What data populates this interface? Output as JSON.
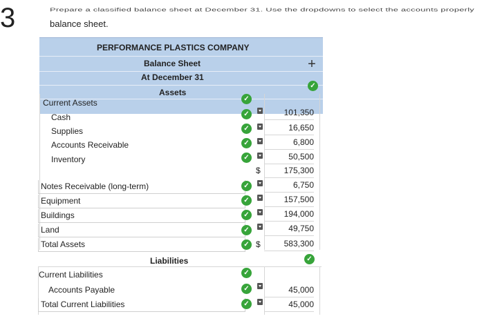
{
  "question": {
    "number": "3",
    "instruction_cut": "Prepare a classified balance sheet at December 31. Use the dropdowns to select the accounts properly",
    "instruction_line2": "balance sheet."
  },
  "sheet": {
    "company": "PERFORMANCE PLASTICS COMPANY",
    "title": "Balance Sheet",
    "date": "At December 31",
    "assets_heading": "Assets",
    "liabilities_heading": "Liabilities",
    "current_assets_label": "Current Assets",
    "current_assets": [
      {
        "label": "Cash",
        "amount": "101,350",
        "dollar": ""
      },
      {
        "label": "Supplies",
        "amount": "16,650",
        "dollar": ""
      },
      {
        "label": "Accounts Receivable",
        "amount": "6,800",
        "dollar": ""
      },
      {
        "label": "Inventory",
        "amount": "50,500",
        "dollar": ""
      }
    ],
    "current_assets_total": {
      "dollar": "$",
      "amount": "175,300"
    },
    "noncurrent_assets": [
      {
        "label": "Notes Receivable (long-term)",
        "amount": "6,750"
      },
      {
        "label": "Equipment",
        "amount": "157,500"
      },
      {
        "label": "Buildings",
        "amount": "194,000"
      },
      {
        "label": "Land",
        "amount": "49,750"
      }
    ],
    "total_assets": {
      "label": "Total Assets",
      "dollar": "$",
      "amount": "583,300"
    },
    "current_liabilities_label": "Current Liabilities",
    "accounts_payable": {
      "label": "Accounts Payable",
      "amount": "45,000"
    },
    "total_current_liabilities": {
      "label": "Total Current Liabilities",
      "amount": "45,000"
    }
  },
  "icons": {
    "check": "check-circle-icon",
    "dropdown": "dropdown-arrow-icon",
    "plus": "plus-icon"
  },
  "colors": {
    "header_bg": "#b9d0ea",
    "check_green": "#37a43a"
  }
}
